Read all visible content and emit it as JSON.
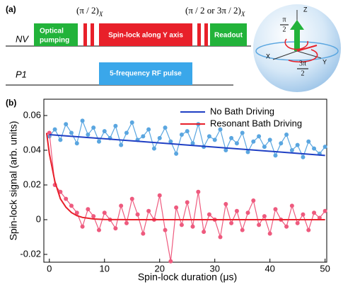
{
  "panel_a": {
    "label": "(a)",
    "nv": "NV",
    "p1": "P1",
    "optical_1": "Optical",
    "optical_2": "pumping",
    "pulse_1": "(π / 2)",
    "pulse_1_sub": "X",
    "spin_lock": "Spin-lock along Y axis",
    "pulse_2": "(π / 2 or 3π / 2)",
    "pulse_2_sub": "X",
    "readout": "Readout",
    "rf": "5-frequency RF pulse"
  },
  "bloch": {
    "z": "Z",
    "x": "X",
    "y": "Y",
    "angle_1_num": "π",
    "angle_1_den": "2",
    "angle_2_num": "3π",
    "angle_2_den": "2"
  },
  "chart_data": {
    "type": "line",
    "panel_label": "(b)",
    "x_label": "Spin-lock duration (μs)",
    "y_label": "Spin-lock signal (arb. units)",
    "xlim": [
      -1,
      50.3
    ],
    "ylim": [
      -0.0245,
      0.0694
    ],
    "xticks": [
      0,
      10,
      20,
      30,
      40,
      50
    ],
    "yticks": [
      -0.02,
      0,
      0.02,
      0.04,
      0.06
    ],
    "series": [
      {
        "color": "#5aa6e0",
        "markers": true,
        "x": [
          0,
          1,
          2,
          3,
          4,
          5,
          6,
          7,
          8,
          9,
          10,
          11,
          12,
          13,
          14,
          15,
          16,
          17,
          18,
          19,
          20,
          21,
          22,
          23,
          24,
          25,
          26,
          27,
          28,
          29,
          30,
          31,
          32,
          33,
          34,
          35,
          36,
          37,
          38,
          39,
          40,
          41,
          42,
          43,
          44,
          45,
          46,
          47,
          48,
          49,
          50
        ],
        "values": [
          0.048,
          0.052,
          0.046,
          0.055,
          0.05,
          0.044,
          0.057,
          0.049,
          0.053,
          0.045,
          0.051,
          0.047,
          0.054,
          0.043,
          0.05,
          0.056,
          0.046,
          0.048,
          0.052,
          0.041,
          0.047,
          0.053,
          0.045,
          0.038,
          0.049,
          0.051,
          0.044,
          0.055,
          0.042,
          0.048,
          0.046,
          0.052,
          0.04,
          0.047,
          0.044,
          0.05,
          0.039,
          0.045,
          0.048,
          0.042,
          0.046,
          0.037,
          0.044,
          0.049,
          0.04,
          0.043,
          0.036,
          0.045,
          0.041,
          0.038,
          0.042
        ]
      },
      {
        "color": "#ee5a7e",
        "markers": true,
        "x": [
          0,
          1,
          2,
          3,
          4,
          5,
          6,
          7,
          8,
          9,
          10,
          11,
          12,
          13,
          14,
          15,
          16,
          17,
          18,
          19,
          20,
          21,
          22,
          23,
          24,
          25,
          26,
          27,
          28,
          29,
          30,
          31,
          32,
          33,
          34,
          35,
          36,
          37,
          38,
          39,
          40,
          41,
          42,
          43,
          44,
          45,
          46,
          47,
          48,
          49,
          50
        ],
        "values": [
          0.05,
          0.02,
          0.016,
          0.012,
          0.008,
          0.004,
          -0.004,
          0.006,
          0.002,
          -0.006,
          0.004,
          0.0,
          -0.005,
          0.008,
          -0.002,
          0.012,
          0.003,
          -0.008,
          0.005,
          0.0,
          0.014,
          -0.006,
          -0.024,
          0.007,
          -0.003,
          0.01,
          -0.004,
          0.016,
          -0.007,
          0.003,
          0.0,
          -0.01,
          0.009,
          -0.002,
          0.005,
          -0.006,
          0.004,
          0.011,
          -0.003,
          0.002,
          -0.008,
          0.006,
          0.0,
          -0.004,
          0.008,
          -0.002,
          0.003,
          -0.006,
          0.004,
          0.001,
          0.005
        ]
      },
      {
        "name": "No Bath Driving",
        "color": "#1f3fc4",
        "markers": false,
        "x": [
          0,
          50
        ],
        "values": [
          0.049,
          0.037
        ]
      },
      {
        "name": "Resonant Bath Driving",
        "color": "#e8202a",
        "markers": false,
        "x": [
          -0.5,
          0,
          1,
          2,
          3,
          4,
          5,
          6,
          8,
          10,
          15,
          20,
          50
        ],
        "values": [
          0.05,
          0.038,
          0.022,
          0.012,
          0.0072,
          0.0041,
          0.0023,
          0.0013,
          0.0004,
          0.0001,
          0,
          0,
          0
        ]
      }
    ]
  }
}
